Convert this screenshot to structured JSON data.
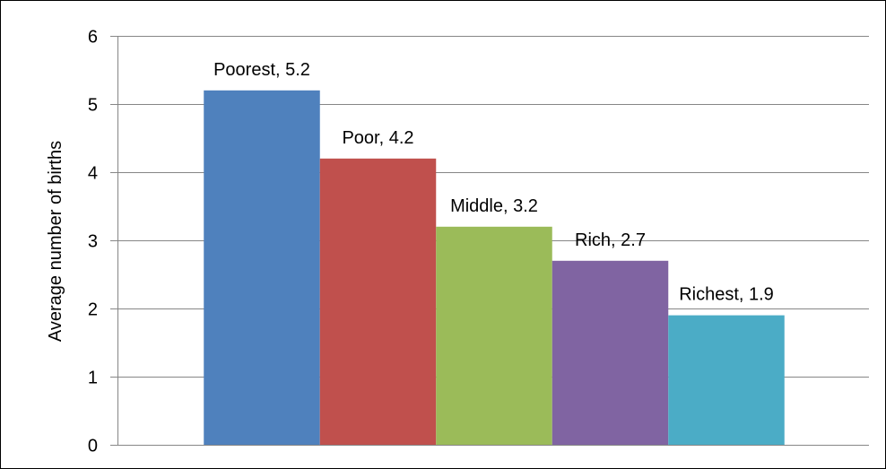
{
  "chart_data": {
    "type": "bar",
    "title": "",
    "xlabel": "",
    "ylabel": "Average number of births",
    "ylim": [
      0,
      6
    ],
    "yticks": [
      0,
      1,
      2,
      3,
      4,
      5,
      6
    ],
    "grid": true,
    "legend": "none",
    "categories": [
      "Poorest",
      "Poor",
      "Middle",
      "Rich",
      "Richest"
    ],
    "values": [
      5.2,
      4.2,
      3.2,
      2.7,
      1.9
    ],
    "data_labels": [
      "Poorest, 5.2",
      "Poor, 4.2",
      "Middle, 3.2",
      "Rich, 2.7",
      "Richest, 1.9"
    ],
    "colors": [
      "#4F81BD",
      "#C0504D",
      "#9BBB59",
      "#8064A2",
      "#4BACC6"
    ]
  }
}
